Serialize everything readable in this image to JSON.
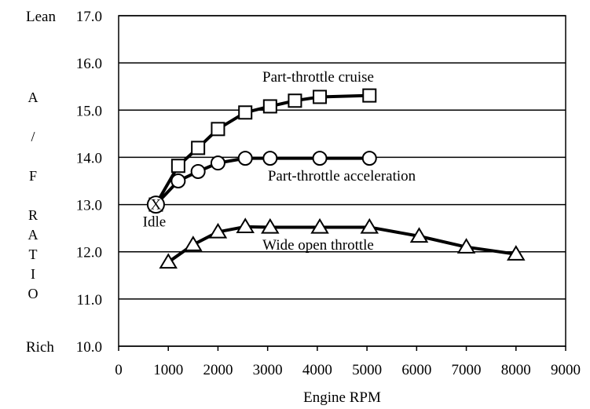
{
  "chart_data": {
    "type": "line",
    "xlabel": "Engine RPM",
    "ylabel": "A / F RATIO",
    "xlim": [
      0,
      9000
    ],
    "ylim": [
      10,
      17
    ],
    "x_ticks": [
      "0",
      "1000",
      "2000",
      "3000",
      "4000",
      "5000",
      "6000",
      "7000",
      "8000",
      "9000"
    ],
    "y_ticks": [
      "10.0",
      "11.0",
      "12.0",
      "13.0",
      "14.0",
      "15.0",
      "16.0",
      "17.0"
    ],
    "y_extreme_labels": {
      "top": "Lean",
      "bottom": "Rich"
    },
    "grid": "horizontal",
    "series": [
      {
        "name": "Part-throttle cruise",
        "marker": "square",
        "x": [
          750,
          1200,
          1600,
          2000,
          2550,
          3050,
          3550,
          4050,
          5050
        ],
        "y": [
          13.0,
          13.82,
          14.2,
          14.6,
          14.95,
          15.08,
          15.2,
          15.28,
          15.31
        ]
      },
      {
        "name": "Part-throttle acceleration",
        "marker": "circle",
        "x": [
          750,
          1200,
          1600,
          2000,
          2550,
          3050,
          4050,
          5050
        ],
        "y": [
          13.0,
          13.5,
          13.7,
          13.88,
          13.98,
          13.98,
          13.98,
          13.98
        ]
      },
      {
        "name": "Wide open throttle",
        "marker": "triangle",
        "x": [
          1000,
          1500,
          2000,
          2550,
          3050,
          4050,
          5050,
          6050,
          7000,
          8000
        ],
        "y": [
          11.78,
          12.15,
          12.42,
          12.53,
          12.52,
          12.52,
          12.52,
          12.33,
          12.1,
          11.95
        ]
      }
    ],
    "annotations": [
      {
        "text": "Idle",
        "x": 750,
        "y": 12.65
      }
    ],
    "idle_marker": {
      "x": 750,
      "y": 13.0,
      "label": "X"
    }
  }
}
